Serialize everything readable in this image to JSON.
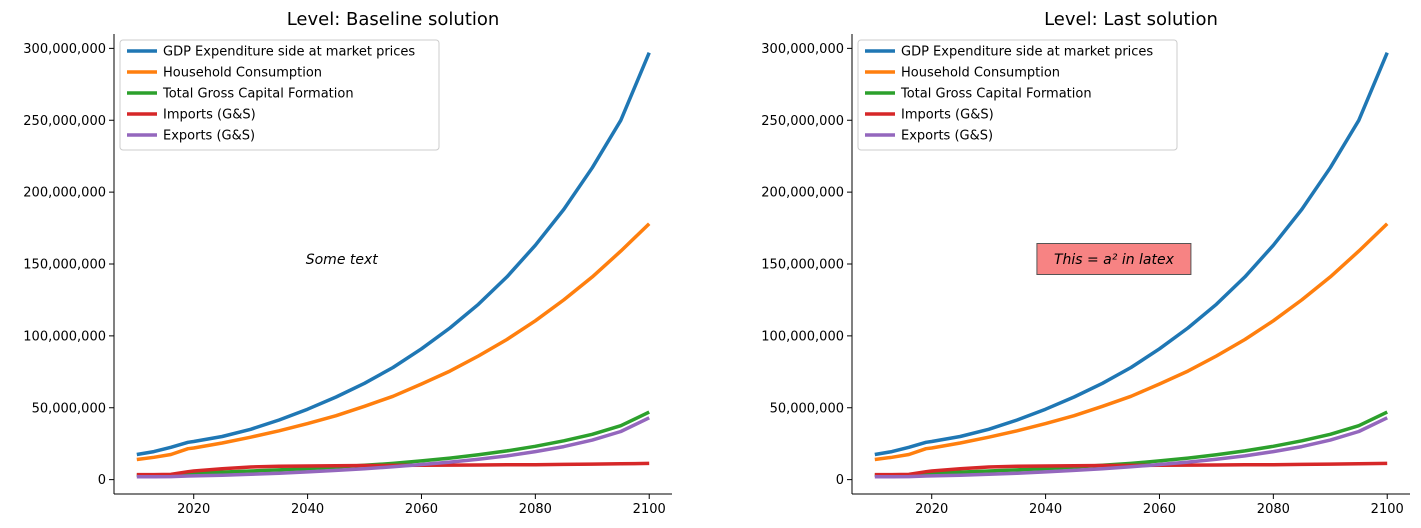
{
  "chart_data": [
    {
      "type": "line",
      "title": "Level: Baseline solution",
      "xlabel": "",
      "ylabel": "",
      "xlim": [
        2006,
        2104
      ],
      "ylim": [
        -10000000,
        310000000
      ],
      "xticks": [
        2020,
        2040,
        2060,
        2080,
        2100
      ],
      "xtick_labels": [
        "2020",
        "2040",
        "2060",
        "2080",
        "2100"
      ],
      "yticks": [
        0,
        50000000,
        100000000,
        150000000,
        200000000,
        250000000,
        300000000
      ],
      "ytick_labels": [
        "0",
        "50,000,000",
        "100,000,000",
        "150,000,000",
        "200,000,000",
        "250,000,000",
        "300,000,000"
      ],
      "x": [
        2010,
        2013,
        2016,
        2019,
        2020,
        2025,
        2030,
        2035,
        2040,
        2045,
        2050,
        2055,
        2060,
        2065,
        2070,
        2075,
        2080,
        2085,
        2090,
        2095,
        2100
      ],
      "series": [
        {
          "name": "GDP Expenditure side at market prices",
          "color": "#1f77b4",
          "values": [
            17500000,
            19500000,
            22500000,
            26000000,
            26500000,
            30000000,
            35000000,
            41500000,
            49000000,
            57500000,
            67000000,
            78000000,
            91000000,
            105500000,
            122000000,
            141000000,
            163000000,
            188000000,
            217000000,
            250000000,
            297000000
          ]
        },
        {
          "name": "Household Consumption",
          "color": "#ff7f0e",
          "values": [
            14000000,
            15500000,
            17500000,
            21500000,
            22000000,
            25500000,
            29500000,
            34000000,
            39000000,
            44500000,
            51000000,
            58000000,
            66500000,
            75500000,
            86000000,
            97500000,
            110500000,
            125000000,
            141000000,
            159000000,
            178000000
          ]
        },
        {
          "name": "Total Gross Capital Formation",
          "color": "#2ca02c",
          "values": [
            3000000,
            3000000,
            3200000,
            4200000,
            4500000,
            5200000,
            6000000,
            6800000,
            7700000,
            8700000,
            10000000,
            11300000,
            13000000,
            15000000,
            17300000,
            20000000,
            23200000,
            27000000,
            31500000,
            37500000,
            47000000
          ]
        },
        {
          "name": "Imports (G&S)",
          "color": "#d62728",
          "values": [
            3500000,
            3500000,
            3600000,
            5500000,
            6000000,
            7500000,
            8800000,
            9300000,
            9500000,
            9600000,
            9800000,
            9900000,
            10000000,
            10100000,
            10200000,
            10300000,
            10400000,
            10600000,
            10800000,
            11000000,
            11300000
          ]
        },
        {
          "name": "Exports (G&S)",
          "color": "#9467bd",
          "values": [
            2000000,
            2000000,
            2100000,
            2500000,
            2600000,
            3000000,
            3700000,
            4500000,
            5400000,
            6400000,
            7600000,
            8900000,
            10500000,
            12200000,
            14200000,
            16500000,
            19500000,
            23000000,
            27500000,
            33500000,
            43000000
          ]
        }
      ],
      "legend": "upper-left",
      "annotation": {
        "text": "Some text",
        "x": 2046,
        "y": 150000000,
        "boxed": false
      }
    },
    {
      "type": "line",
      "title": "Level: Last solution",
      "xlabel": "",
      "ylabel": "",
      "xlim": [
        2006,
        2104
      ],
      "ylim": [
        -10000000,
        310000000
      ],
      "xticks": [
        2020,
        2040,
        2060,
        2080,
        2100
      ],
      "xtick_labels": [
        "2020",
        "2040",
        "2060",
        "2080",
        "2100"
      ],
      "yticks": [
        0,
        50000000,
        100000000,
        150000000,
        200000000,
        250000000,
        300000000
      ],
      "ytick_labels": [
        "0",
        "50,000,000",
        "100,000,000",
        "150,000,000",
        "200,000,000",
        "250,000,000",
        "300,000,000"
      ],
      "x": [
        2010,
        2013,
        2016,
        2019,
        2020,
        2025,
        2030,
        2035,
        2040,
        2045,
        2050,
        2055,
        2060,
        2065,
        2070,
        2075,
        2080,
        2085,
        2090,
        2095,
        2100
      ],
      "series": [
        {
          "name": "GDP Expenditure side at market prices",
          "color": "#1f77b4",
          "values": [
            17500000,
            19500000,
            22500000,
            26000000,
            26500000,
            30000000,
            35000000,
            41500000,
            49000000,
            57500000,
            67000000,
            78000000,
            91000000,
            105500000,
            122000000,
            141000000,
            163000000,
            188000000,
            217000000,
            250000000,
            297000000
          ]
        },
        {
          "name": "Household Consumption",
          "color": "#ff7f0e",
          "values": [
            14000000,
            15500000,
            17500000,
            21500000,
            22000000,
            25500000,
            29500000,
            34000000,
            39000000,
            44500000,
            51000000,
            58000000,
            66500000,
            75500000,
            86000000,
            97500000,
            110500000,
            125000000,
            141000000,
            159000000,
            178000000
          ]
        },
        {
          "name": "Total Gross Capital Formation",
          "color": "#2ca02c",
          "values": [
            3000000,
            3000000,
            3200000,
            4200000,
            4500000,
            5200000,
            6000000,
            6800000,
            7700000,
            8700000,
            10000000,
            11300000,
            13000000,
            15000000,
            17300000,
            20000000,
            23200000,
            27000000,
            31500000,
            37500000,
            47000000
          ]
        },
        {
          "name": "Imports (G&S)",
          "color": "#d62728",
          "values": [
            3500000,
            3500000,
            3600000,
            5500000,
            6000000,
            7500000,
            8800000,
            9300000,
            9500000,
            9600000,
            9800000,
            9900000,
            10000000,
            10100000,
            10200000,
            10300000,
            10400000,
            10600000,
            10800000,
            11000000,
            11300000
          ]
        },
        {
          "name": "Exports (G&S)",
          "color": "#9467bd",
          "values": [
            2000000,
            2000000,
            2100000,
            2500000,
            2600000,
            3000000,
            3700000,
            4500000,
            5400000,
            6400000,
            7600000,
            8900000,
            10500000,
            12200000,
            14200000,
            16500000,
            19500000,
            23000000,
            27500000,
            33500000,
            43000000
          ]
        }
      ],
      "legend": "upper-left",
      "annotation": {
        "text": "This = a² in latex",
        "x": 2052,
        "y": 150000000,
        "boxed": true,
        "box_color": "#f77c7c"
      }
    }
  ]
}
